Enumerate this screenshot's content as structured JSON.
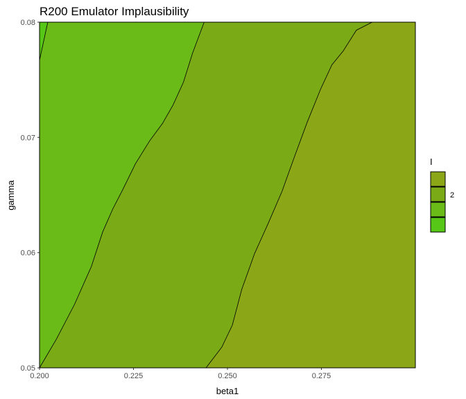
{
  "chart_data": {
    "type": "contour",
    "title": "R200  Emulator Implausibility",
    "xlabel": "beta1",
    "ylabel": "gamma",
    "xlim": [
      0.2,
      0.3
    ],
    "ylim": [
      0.05,
      0.08
    ],
    "x_ticks": [
      "0.200",
      "0.225",
      "0.250",
      "0.275"
    ],
    "x_tick_values": [
      0.2,
      0.225,
      0.25,
      0.275
    ],
    "y_ticks": [
      "0.05",
      "0.06",
      "0.07",
      "0.08"
    ],
    "y_tick_values": [
      0.05,
      0.06,
      0.07,
      0.08
    ],
    "grid": false,
    "legend": {
      "title": "I",
      "position": "right",
      "labels": [
        "",
        "2",
        "",
        ""
      ],
      "colors": [
        "#8ba717",
        "#7aab17",
        "#6abb17",
        "#57c717"
      ]
    },
    "regions": [
      {
        "color": "#57c717"
      },
      {
        "color": "#6abb17"
      },
      {
        "color": "#7aab17"
      },
      {
        "color": "#8ba717"
      }
    ],
    "contours": [
      {
        "points": [
          [
            0.2,
            0.0767
          ],
          [
            0.2022,
            0.08
          ]
        ]
      },
      {
        "points": [
          [
            0.2,
            0.05
          ],
          [
            0.2045,
            0.0525
          ],
          [
            0.2093,
            0.0555
          ],
          [
            0.2138,
            0.0588
          ],
          [
            0.2168,
            0.0618
          ],
          [
            0.2195,
            0.0638
          ],
          [
            0.2222,
            0.0655
          ],
          [
            0.2255,
            0.0677
          ],
          [
            0.2293,
            0.0697
          ],
          [
            0.2327,
            0.0712
          ],
          [
            0.2355,
            0.0728
          ],
          [
            0.2383,
            0.0748
          ],
          [
            0.2407,
            0.0773
          ],
          [
            0.2438,
            0.08
          ]
        ]
      },
      {
        "points": [
          [
            0.2443,
            0.05
          ],
          [
            0.2485,
            0.0518
          ],
          [
            0.2513,
            0.0537
          ],
          [
            0.2538,
            0.0568
          ],
          [
            0.2572,
            0.0599
          ],
          [
            0.2608,
            0.0625
          ],
          [
            0.2645,
            0.0653
          ],
          [
            0.2678,
            0.0683
          ],
          [
            0.2712,
            0.0713
          ],
          [
            0.2748,
            0.0742
          ],
          [
            0.2778,
            0.0763
          ],
          [
            0.2808,
            0.0775
          ],
          [
            0.2843,
            0.0793
          ],
          [
            0.2885,
            0.08
          ]
        ]
      }
    ]
  }
}
